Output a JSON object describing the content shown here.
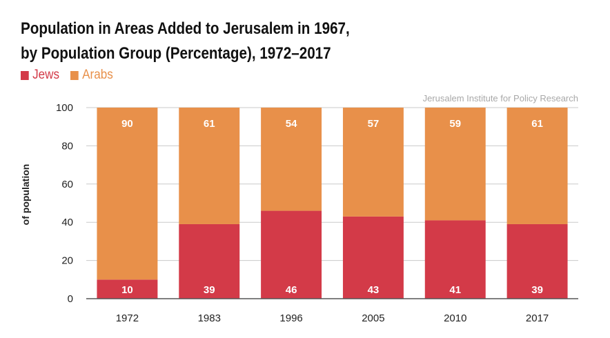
{
  "chart_data": {
    "type": "bar",
    "stacked": true,
    "title": "Population in Areas Added to Jerusalem in 1967,",
    "subtitle": "by Population Group (Percentage), 1972–2017",
    "source": "Jerusalem Institute for Policy Research",
    "ylabel": "of population",
    "xlabel": "",
    "ylim": [
      0,
      100
    ],
    "yticks": [
      0,
      20,
      40,
      60,
      80,
      100
    ],
    "grid": true,
    "legend_position": "top-left",
    "categories": [
      "1972",
      "1983",
      "1996",
      "2005",
      "2010",
      "2017"
    ],
    "series": [
      {
        "name": "Jews",
        "color": "#d33a48",
        "values": [
          10,
          39,
          46,
          43,
          41,
          39
        ]
      },
      {
        "name": "Arabs",
        "color": "#e8904a",
        "values": [
          90,
          61,
          54,
          57,
          59,
          61
        ]
      }
    ]
  }
}
